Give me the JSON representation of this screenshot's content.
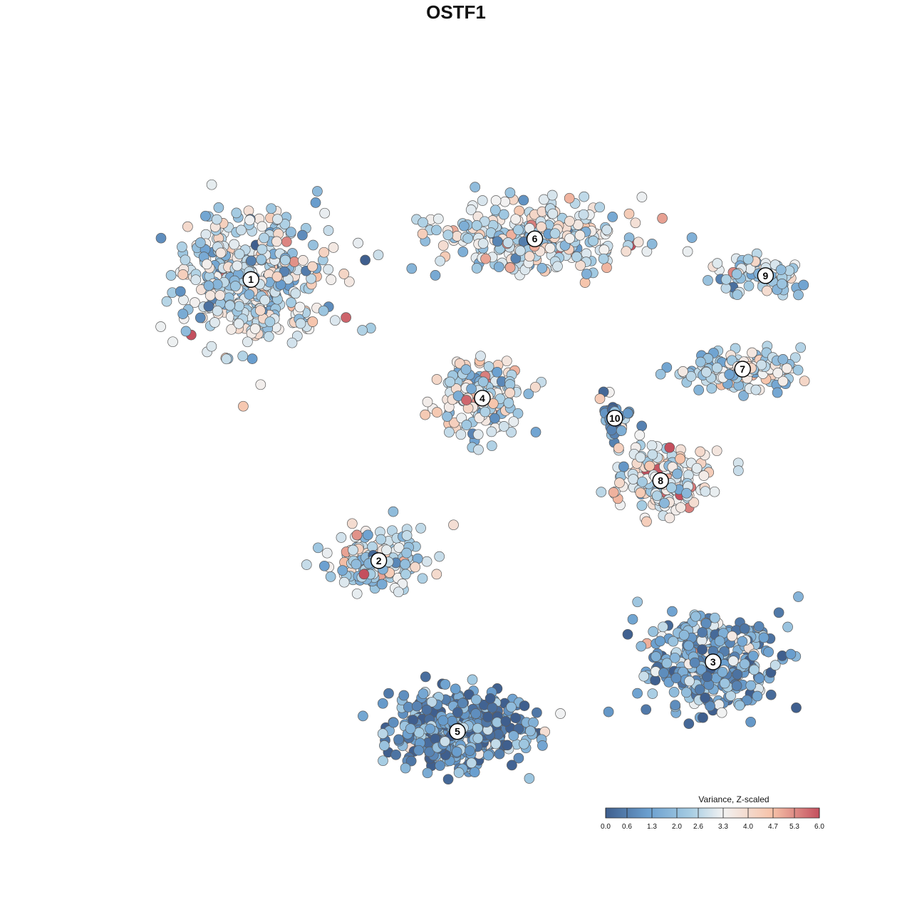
{
  "chart_data": {
    "type": "scatter",
    "title": "OSTF1",
    "xlabel": "",
    "ylabel": "",
    "xlim": [
      0,
      1
    ],
    "ylim": [
      0,
      1
    ],
    "grid": false,
    "legend": {
      "title": "Variance, Z-scaled",
      "placement": "bottom-right",
      "ticks": [
        "0.0",
        "0.6",
        "1.3",
        "2.0",
        "2.6",
        "3.3",
        "4.0",
        "4.7",
        "5.3",
        "6.0"
      ],
      "range": [
        0.0,
        6.0
      ],
      "colors": [
        "#3f5f8e",
        "#6a9fcf",
        "#a7cde3",
        "#f2f2f2",
        "#f6c2a8",
        "#c44f5e"
      ]
    },
    "clusters": [
      {
        "label": "1",
        "x": 0.16,
        "y": 0.771,
        "mean_value": 2.7
      },
      {
        "label": "6",
        "x": 0.593,
        "y": 0.834,
        "mean_value": 2.9
      },
      {
        "label": "9",
        "x": 0.945,
        "y": 0.777,
        "mean_value": 2.4
      },
      {
        "label": "7",
        "x": 0.91,
        "y": 0.632,
        "mean_value": 2.6
      },
      {
        "label": "4",
        "x": 0.513,
        "y": 0.587,
        "mean_value": 2.9
      },
      {
        "label": "10",
        "x": 0.715,
        "y": 0.556,
        "mean_value": 1.2
      },
      {
        "label": "8",
        "x": 0.785,
        "y": 0.459,
        "mean_value": 3.2
      },
      {
        "label": "2",
        "x": 0.355,
        "y": 0.335,
        "mean_value": 2.8
      },
      {
        "label": "3",
        "x": 0.865,
        "y": 0.178,
        "mean_value": 1.4
      },
      {
        "label": "5",
        "x": 0.475,
        "y": 0.07,
        "mean_value": 1.1
      }
    ]
  }
}
